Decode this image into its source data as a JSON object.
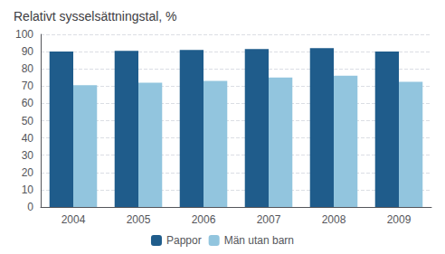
{
  "chart_data": {
    "type": "bar",
    "title": "Relativt sysselsättningstal, %",
    "categories": [
      "2004",
      "2005",
      "2006",
      "2007",
      "2008",
      "2009"
    ],
    "series": [
      {
        "name": "Pappor",
        "color": "#1F5C8B",
        "values": [
          90,
          90.5,
          91,
          91.5,
          92,
          90
        ]
      },
      {
        "name": "Män utan barn",
        "color": "#92C5DE",
        "values": [
          70.5,
          72,
          73,
          75,
          76,
          72.5
        ]
      }
    ],
    "ylim": [
      0,
      100
    ],
    "yticks": [
      0,
      10,
      20,
      30,
      40,
      50,
      60,
      70,
      80,
      90,
      100
    ],
    "grid": true,
    "legend": "bottom"
  }
}
